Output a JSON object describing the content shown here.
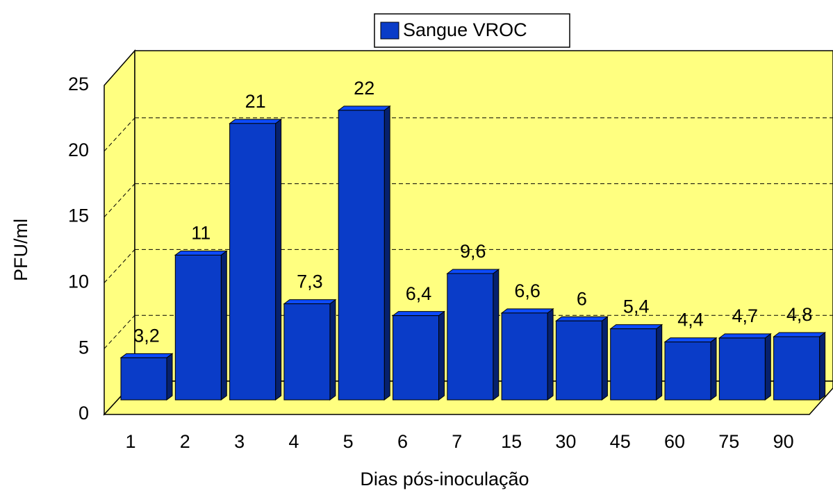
{
  "chart_data": {
    "type": "bar",
    "x_label": "Dias pós-inoculação",
    "y_label": "PFU/ml",
    "categories": [
      "1",
      "2",
      "3",
      "4",
      "5",
      "6",
      "7",
      "15",
      "30",
      "45",
      "60",
      "75",
      "90"
    ],
    "series": [
      {
        "name": "Sangue VROC",
        "color": "#0a3cc8",
        "values": [
          3.2,
          11,
          21,
          7.3,
          22,
          6.4,
          9.6,
          6.6,
          6,
          5.4,
          4.4,
          4.7,
          4.8
        ],
        "value_labels": [
          "3,2",
          "11",
          "21",
          "7,3",
          "22",
          "6,4",
          "9,6",
          "6,6",
          "6",
          "5,4",
          "4,4",
          "4,7",
          "4,8"
        ]
      }
    ],
    "ylim": [
      0,
      25
    ],
    "yticks": [
      0,
      5,
      10,
      15,
      20,
      25
    ],
    "grid": true,
    "legend": "top"
  }
}
